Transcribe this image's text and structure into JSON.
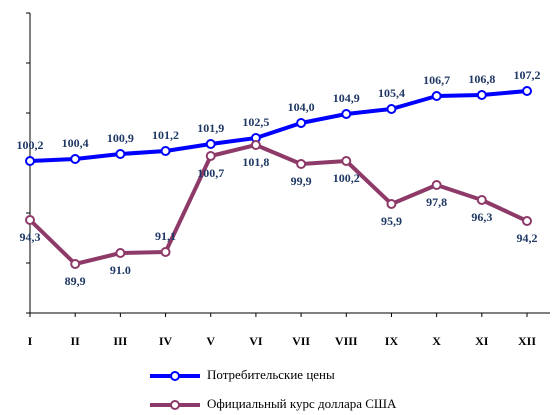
{
  "chart_data": {
    "type": "line",
    "categories": [
      "I",
      "II",
      "III",
      "IV",
      "V",
      "VI",
      "VII",
      "VIII",
      "IX",
      "X",
      "XI",
      "XII"
    ],
    "series": [
      {
        "name": "Потребительские цены",
        "color": "#0000ff",
        "values": [
          100.2,
          100.4,
          100.9,
          101.2,
          101.9,
          102.5,
          104.0,
          104.9,
          105.4,
          106.7,
          106.8,
          107.2
        ],
        "value_labels": [
          "100,2",
          "100,4",
          "100,9",
          "101,2",
          "101,9",
          "102,5",
          "104,0",
          "104,9",
          "105,4",
          "106,7",
          "106,8",
          "107,2"
        ]
      },
      {
        "name": "Официальный курс доллара США",
        "color": "#8e3a68",
        "values": [
          94.3,
          89.9,
          91.0,
          91.1,
          100.7,
          101.8,
          99.9,
          100.2,
          95.9,
          97.8,
          96.3,
          94.2
        ],
        "value_labels": [
          "94,3",
          "89,9",
          "91.0",
          "91,1",
          "100,7",
          "101,8",
          "99,9",
          "100,2",
          "95,9",
          "97,8",
          "96,3",
          "94,2"
        ]
      }
    ],
    "ylim": [
      85,
      115
    ],
    "yticks": [
      85,
      90,
      95,
      100,
      105,
      110,
      115
    ]
  }
}
